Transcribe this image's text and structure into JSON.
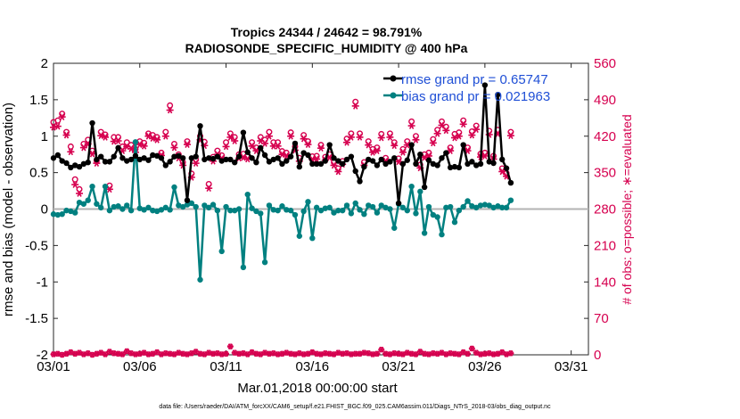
{
  "chart_data": {
    "type": "line",
    "title": "Tropics 24344 / 24642 = 98.791%",
    "subtitle": "RADIOSONDE_SPECIFIC_HUMIDITY @ 400 hPa",
    "xlabel": "Mar.01,2018 00:00:00 start",
    "ylabel_left": "rmse and bias (model - observation)",
    "ylabel_right": "# of obs: o=possible; ∗=evaluated",
    "footer": "data file: /Users/raeder/DAI/ATM_forcXX/CAM6_setup/f.e21.FHIST_BGC.f09_025.CAM6assim.011/Diags_NTrS_2018-03/obs_diag_output.nc",
    "ylim_left": [
      -2,
      2
    ],
    "ylim_right": [
      0,
      560
    ],
    "xlim": [
      1,
      32
    ],
    "yticks_left": [
      "-2",
      "-1.5",
      "-1",
      "-0.5",
      "0",
      "0.5",
      "1",
      "1.5",
      "2"
    ],
    "yticks_right": [
      "0",
      "70",
      "140",
      "210",
      "280",
      "350",
      "420",
      "490",
      "560"
    ],
    "xticks": [
      {
        "day": 1,
        "label": "03/01"
      },
      {
        "day": 6,
        "label": "03/06"
      },
      {
        "day": 11,
        "label": "03/11"
      },
      {
        "day": 16,
        "label": "03/16"
      },
      {
        "day": 21,
        "label": "03/21"
      },
      {
        "day": 26,
        "label": "03/26"
      },
      {
        "day": 31,
        "label": "03/31"
      }
    ],
    "legend": [
      {
        "name": "rmse grand pr = 0.65747",
        "color": "#000000"
      },
      {
        "name": "bias grand pr = 0.021963",
        "color": "#008080"
      }
    ],
    "colors": {
      "rmse": "#000000",
      "bias": "#008080",
      "obs": "#d6004f",
      "zero": "#b3b3b3"
    },
    "x_start_day": 1.0,
    "x_step_days": 0.25,
    "series": [
      {
        "name": "rmse",
        "values": [
          0.7,
          0.74,
          0.66,
          0.63,
          0.57,
          0.6,
          0.58,
          0.62,
          0.64,
          1.18,
          0.68,
          0.72,
          0.65,
          0.65,
          0.72,
          0.84,
          0.7,
          0.66,
          0.68,
          0.73,
          0.68,
          0.7,
          0.67,
          0.74,
          0.73,
          0.7,
          0.6,
          0.65,
          0.72,
          0.73,
          0.7,
          0.12,
          0.7,
          0.72,
          1.14,
          0.68,
          0.7,
          0.69,
          0.72,
          0.66,
          0.68,
          0.68,
          0.64,
          0.72,
          1.05,
          0.78,
          0.7,
          0.64,
          0.84,
          0.74,
          0.65,
          0.68,
          0.7,
          0.62,
          0.66,
          0.72,
          0.9,
          0.58,
          0.77,
          0.74,
          0.62,
          0.62,
          0.62,
          0.66,
          0.88,
          0.7,
          0.66,
          0.62,
          0.68,
          0.72,
          0.52,
          0.38,
          0.58,
          0.68,
          0.66,
          0.6,
          0.68,
          0.62,
          0.65,
          0.7,
          0.08,
          0.62,
          0.67,
          0.88,
          0.62,
          0.75,
          0.3,
          0.67,
          0.62,
          0.6,
          0.7,
          0.77,
          0.57,
          0.58,
          0.57,
          0.88,
          0.62,
          0.65,
          0.6,
          0.62,
          1.7,
          0.65,
          0.63,
          1.57,
          0.68,
          0.56,
          0.36
        ],
        "color": "#000000"
      },
      {
        "name": "bias",
        "values": [
          -0.07,
          -0.08,
          -0.07,
          -0.02,
          -0.03,
          -0.05,
          0.09,
          0.07,
          0.12,
          0.31,
          0.07,
          0.02,
          0.31,
          -0.02,
          0.03,
          0.04,
          0.0,
          0.05,
          -0.02,
          0.92,
          0.01,
          -0.01,
          0.02,
          -0.02,
          -0.03,
          -0.01,
          0.02,
          -0.01,
          0.3,
          0.05,
          0.03,
          0.06,
          0.08,
          0.03,
          -0.97,
          0.05,
          0.02,
          0.06,
          -0.02,
          -0.58,
          0.03,
          -0.02,
          -0.02,
          0.0,
          -0.8,
          0.2,
          0.01,
          -0.03,
          -0.06,
          -0.73,
          0.05,
          -0.01,
          -0.02,
          0.04,
          -0.01,
          -0.02,
          -0.08,
          -0.37,
          -0.03,
          0.1,
          -0.4,
          0.02,
          -0.02,
          0.01,
          0.02,
          -0.05,
          -0.02,
          -0.02,
          0.05,
          -0.06,
          0.08,
          -0.01,
          -0.07,
          0.05,
          0.03,
          -0.05,
          0.05,
          0.02,
          0.0,
          -0.26,
          0.07,
          0.02,
          -0.02,
          0.31,
          -0.06,
          0.24,
          -0.33,
          0.03,
          -0.08,
          -0.11,
          -0.35,
          0.02,
          0.03,
          -0.18,
          -0.02,
          0.03,
          0.11,
          0.04,
          0.02,
          0.05,
          0.06,
          0.05,
          0.02,
          0.04,
          0.02,
          0.02,
          0.12
        ],
        "color": "#008080"
      },
      {
        "name": "obs_possible",
        "values": [
          447,
          450,
          463,
          428,
          400,
          337,
          318,
          405,
          413,
          392,
          373,
          428,
          423,
          325,
          418,
          418,
          400,
          408,
          403,
          395,
          410,
          407,
          425,
          422,
          418,
          388,
          428,
          479,
          405,
          385,
          370,
          410,
          348,
          375,
          420,
          409,
          328,
          380,
          392,
          383,
          408,
          425,
          418,
          385,
          386,
          382,
          408,
          398,
          418,
          413,
          428,
          408,
          408,
          391,
          388,
          427,
          400,
          378,
          422,
          410,
          381,
          382,
          403,
          380,
          385,
          370,
          358,
          372,
          415,
          425,
          486,
          425,
          370,
          410,
          395,
          398,
          424,
          378,
          425,
          408,
          377,
          395,
          410,
          448,
          420,
          365,
          385,
          388,
          414,
          432,
          448,
          438,
          398,
          424,
          427,
          450,
          398,
          429,
          440,
          386,
          388,
          430,
          382,
          432,
          358,
          349,
          428
        ],
        "color": "#d6004f"
      },
      {
        "name": "obs_evaluated",
        "values": [
          437,
          439,
          457,
          422,
          390,
          327,
          310,
          398,
          405,
          386,
          368,
          421,
          418,
          318,
          410,
          411,
          392,
          400,
          396,
          389,
          404,
          401,
          420,
          416,
          413,
          383,
          420,
          470,
          398,
          378,
          364,
          404,
          341,
          368,
          413,
          402,
          320,
          372,
          385,
          377,
          400,
          418,
          411,
          378,
          379,
          376,
          401,
          392,
          411,
          406,
          420,
          401,
          401,
          385,
          382,
          420,
          393,
          372,
          415,
          404,
          375,
          376,
          397,
          374,
          379,
          364,
          352,
          366,
          408,
          418,
          478,
          418,
          364,
          403,
          389,
          392,
          417,
          372,
          418,
          402,
          371,
          389,
          403,
          440,
          413,
          359,
          379,
          382,
          407,
          425,
          441,
          431,
          392,
          417,
          420,
          443,
          392,
          422,
          433,
          380,
          382,
          423,
          376,
          425,
          352,
          343,
          421
        ],
        "color": "#d6004f"
      },
      {
        "name": "obs_lower_row",
        "values": [
          1,
          2,
          0,
          2,
          5,
          2,
          4,
          1,
          3,
          0,
          2,
          4,
          1,
          6,
          3,
          2,
          1,
          7,
          3,
          1,
          2,
          4,
          1,
          2,
          5,
          1,
          3,
          2,
          1,
          4,
          2,
          1,
          3,
          6,
          2,
          1,
          4,
          2,
          3,
          1,
          2,
          16,
          4,
          2,
          3,
          1,
          5,
          2,
          1,
          4,
          2,
          3,
          1,
          2,
          4,
          2,
          1,
          3,
          1,
          2,
          5,
          2,
          1,
          3,
          2,
          1,
          4,
          2,
          3,
          1,
          2,
          2,
          4,
          3,
          1,
          2,
          10,
          2,
          1,
          3,
          2,
          1,
          4,
          2,
          1,
          6,
          2,
          1,
          3,
          2,
          4,
          1,
          3,
          2,
          1,
          5,
          2,
          12,
          4,
          1,
          2,
          3,
          1,
          2,
          5,
          1,
          3
        ],
        "color": "#d6004f"
      }
    ]
  }
}
